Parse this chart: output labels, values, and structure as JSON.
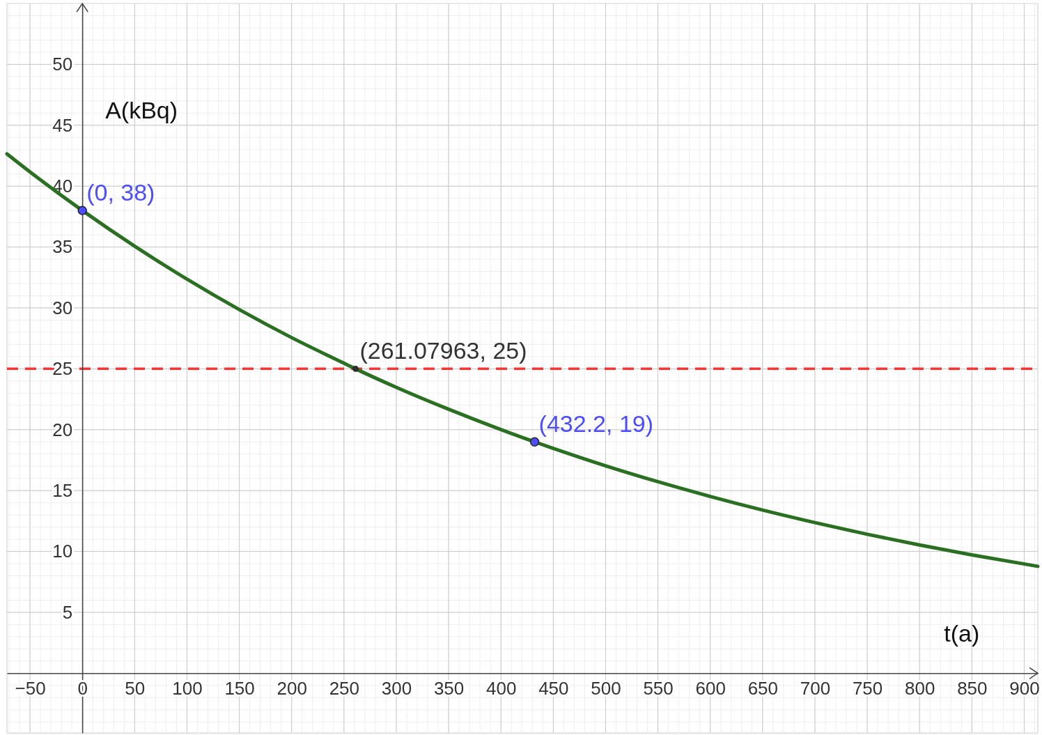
{
  "chart_data": {
    "type": "line",
    "xlabel": "t(a)",
    "ylabel": "A(kBq)",
    "xlim": [
      -72,
      913
    ],
    "ylim": [
      -4.9,
      55
    ],
    "xticks": [
      -50,
      0,
      50,
      100,
      150,
      200,
      250,
      300,
      350,
      400,
      450,
      500,
      550,
      600,
      650,
      700,
      750,
      800,
      850,
      900
    ],
    "yticks": [
      5,
      10,
      15,
      20,
      25,
      30,
      35,
      40,
      45,
      50
    ],
    "grid": true,
    "series": [
      {
        "color": "#2b6f22",
        "marker": "none",
        "x": [
          -72,
          -50,
          0,
          50,
          100,
          150,
          200,
          250,
          261.07963,
          300,
          350,
          400,
          432.2,
          450,
          500,
          550,
          600,
          650,
          700,
          750,
          800,
          850,
          913
        ],
        "values": [
          42.65,
          41.17,
          38,
          35.07,
          32.36,
          29.86,
          27.56,
          25.46,
          25,
          23.48,
          21.68,
          20.01,
          19,
          18.47,
          17.04,
          15.73,
          14.52,
          13.4,
          12.37,
          11.41,
          10.53,
          9.72,
          8.78
        ]
      },
      {
        "type": "scatter",
        "color": "#4d4dff",
        "marker": "circle",
        "x": [
          0,
          432.2
        ],
        "values": [
          38,
          19
        ]
      },
      {
        "type": "scatter",
        "color": "#333333",
        "marker": "circle",
        "x": [
          261.07963
        ],
        "values": [
          25
        ]
      }
    ],
    "ref_lines": [
      {
        "axis": "y",
        "value": 25,
        "color": "#ff3333",
        "line_style": "dashed"
      }
    ],
    "annotations": [
      {
        "text": "(0, 38)",
        "x": 0,
        "y": 38
      },
      {
        "text": "(261.07963, 25)",
        "x": 261.07963,
        "y": 25
      },
      {
        "text": "(432.2, 19)",
        "x": 432.2,
        "y": 19
      }
    ]
  }
}
